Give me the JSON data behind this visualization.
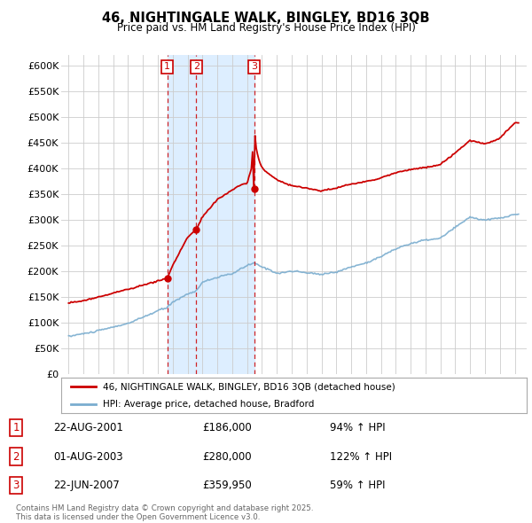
{
  "title": "46, NIGHTINGALE WALK, BINGLEY, BD16 3QB",
  "subtitle": "Price paid vs. HM Land Registry's House Price Index (HPI)",
  "property_label": "46, NIGHTINGALE WALK, BINGLEY, BD16 3QB (detached house)",
  "hpi_label": "HPI: Average price, detached house, Bradford",
  "transactions": [
    {
      "num": 1,
      "date": "22-AUG-2001",
      "price": 186000,
      "pct": "94%",
      "dir": "↑",
      "ref": "HPI"
    },
    {
      "num": 2,
      "date": "01-AUG-2003",
      "price": 280000,
      "pct": "122%",
      "dir": "↑",
      "ref": "HPI"
    },
    {
      "num": 3,
      "date": "22-JUN-2007",
      "price": 359950,
      "pct": "59%",
      "dir": "↑",
      "ref": "HPI"
    }
  ],
  "transaction_years": [
    2001.64,
    2003.58,
    2007.47
  ],
  "transaction_prices": [
    186000,
    280000,
    359950
  ],
  "vline_color": "#cc0000",
  "property_color": "#cc0000",
  "hpi_color": "#7aadcf",
  "shade_color": "#ddeeff",
  "background_color": "#ffffff",
  "grid_color": "#cccccc",
  "ylim": [
    0,
    620000
  ],
  "yticks": [
    0,
    50000,
    100000,
    150000,
    200000,
    250000,
    300000,
    350000,
    400000,
    450000,
    500000,
    550000,
    600000
  ],
  "footer": "Contains HM Land Registry data © Crown copyright and database right 2025.\nThis data is licensed under the Open Government Licence v3.0.",
  "footnote_color": "#666666"
}
